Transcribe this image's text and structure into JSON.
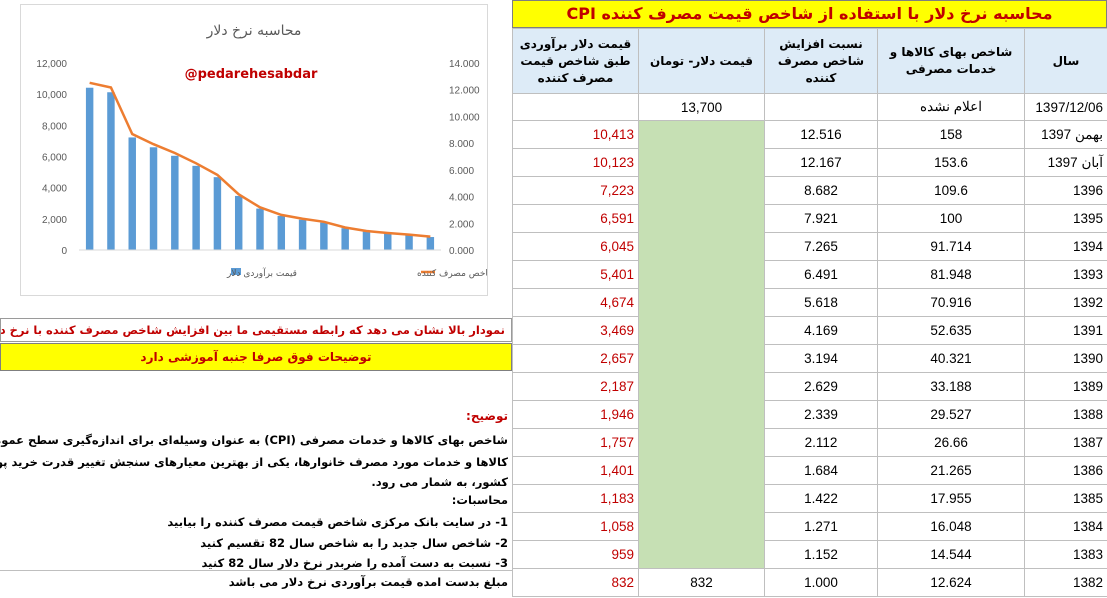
{
  "chart": {
    "title": "محاسبه نرخ دلار",
    "watermark": "@pedarehesabdar",
    "left_axis_ticks": [
      "12,000",
      "10,000",
      "8,000",
      "6,000",
      "4,000",
      "2,000",
      "0"
    ],
    "right_axis_ticks": [
      "14.000",
      "12.000",
      "10.000",
      "8.000",
      "6.000",
      "4.000",
      "2.000",
      "0.000"
    ],
    "legend_bar": "قیمت برآوردی دلار",
    "legend_line": "نسبت افزایش شاخص مصرف کننده",
    "bar_color": "#5b9bd5",
    "line_color": "#ed7d31"
  },
  "chart_data": {
    "type": "bar",
    "title": "محاسبه نرخ دلار",
    "xlabel": "",
    "ylabel": "",
    "ylim": [
      0,
      12000
    ],
    "y2lim": [
      0,
      14
    ],
    "series": [
      {
        "name": "قیمت برآوردی دلار",
        "axis": "left",
        "values": [
          10413,
          10123,
          7223,
          6591,
          6045,
          5401,
          4674,
          3469,
          2657,
          2187,
          1946,
          1757,
          1401,
          1183,
          1058,
          959,
          832
        ]
      },
      {
        "name": "نسبت افزایش شاخص مصرف کننده",
        "axis": "right",
        "values": [
          12.516,
          12.167,
          8.682,
          7.921,
          7.265,
          6.491,
          5.618,
          4.169,
          3.194,
          2.629,
          2.339,
          2.112,
          1.684,
          1.422,
          1.271,
          1.152,
          1.0
        ]
      }
    ],
    "grid": false,
    "legend": "bottom"
  },
  "notes": {
    "chart_conclusion": "نمودار بالا نشان می دهد که رابطه مستقیمی ما بین افزایش شاخص مصرف کننده با نرخ دلار دارد.",
    "educational": "توضیحات فوق صرفا جنبه آموزشی دارد",
    "heading": "توضیح:",
    "lines": [
      "شاخص بهای کالاها و خدمات مصرفی (CPI) به عنوان وسیله‌ای برای اندازه‌گیری سطح عمومی قیمت",
      "کالاها و خدمات مورد مصرف خانوارها، یکی از بهترین معیارهای سنجش تغییر قدرت خرید پول داخل",
      "کشور، به شمار می رود.",
      "محاسبات:",
      "1- در سایت بانک مرکزی شاخص قیمت مصرف کننده را بیابید",
      "2- شاخص سال جدید را به شاخص سال 82 تقسیم کنید",
      "3- نسبت به دست آمده را ضربدر نرخ دلار سال 82 کنید",
      "مبلغ بدست امده قیمت برآوردی نرخ دلار می باشد"
    ]
  },
  "table": {
    "title": "محاسبه نرخ دلار با استفاده از شاخص قیمت مصرف کننده CPI",
    "headers": {
      "estimated": "قیمت دلار برآوردی طبق شاخص قیمت مصرف کننده",
      "toman": "قیمت دلار- تومان",
      "ratio": "نسبت افزایش شاخص مصرف کننده",
      "cpi": "شاخص بهای کالاها و خدمات مصرفی",
      "year": "سال"
    },
    "first_row": {
      "estimated": "",
      "toman": "13,700",
      "ratio": "",
      "cpi": "اعلام نشده",
      "year": "1397/12/06"
    },
    "rows": [
      {
        "estimated": "10,413",
        "ratio": "12.516",
        "cpi": "158",
        "year": "بهمن 1397"
      },
      {
        "estimated": "10,123",
        "ratio": "12.167",
        "cpi": "153.6",
        "year": "آبان 1397"
      },
      {
        "estimated": "7,223",
        "ratio": "8.682",
        "cpi": "109.6",
        "year": "1396"
      },
      {
        "estimated": "6,591",
        "ratio": "7.921",
        "cpi": "100",
        "year": "1395"
      },
      {
        "estimated": "6,045",
        "ratio": "7.265",
        "cpi": "91.714",
        "year": "1394"
      },
      {
        "estimated": "5,401",
        "ratio": "6.491",
        "cpi": "81.948",
        "year": "1393"
      },
      {
        "estimated": "4,674",
        "ratio": "5.618",
        "cpi": "70.916",
        "year": "1392"
      },
      {
        "estimated": "3,469",
        "ratio": "4.169",
        "cpi": "52.635",
        "year": "1391"
      },
      {
        "estimated": "2,657",
        "ratio": "3.194",
        "cpi": "40.321",
        "year": "1390"
      },
      {
        "estimated": "2,187",
        "ratio": "2.629",
        "cpi": "33.188",
        "year": "1389"
      },
      {
        "estimated": "1,946",
        "ratio": "2.339",
        "cpi": "29.527",
        "year": "1388"
      },
      {
        "estimated": "1,757",
        "ratio": "2.112",
        "cpi": "26.66",
        "year": "1387"
      },
      {
        "estimated": "1,401",
        "ratio": "1.684",
        "cpi": "21.265",
        "year": "1386"
      },
      {
        "estimated": "1,183",
        "ratio": "1.422",
        "cpi": "17.955",
        "year": "1385"
      },
      {
        "estimated": "1,058",
        "ratio": "1.271",
        "cpi": "16.048",
        "year": "1384"
      },
      {
        "estimated": "959",
        "ratio": "1.152",
        "cpi": "14.544",
        "year": "1383"
      }
    ],
    "last_row": {
      "estimated": "832",
      "toman": "832",
      "ratio": "1.000",
      "cpi": "12.624",
      "year": "1382"
    }
  }
}
